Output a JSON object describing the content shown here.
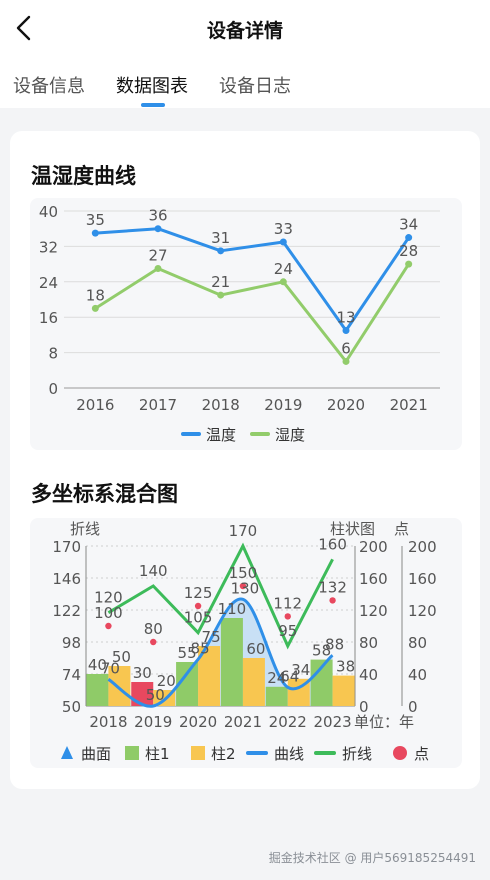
{
  "nav": {
    "title": "设备详情"
  },
  "tabs": [
    {
      "label": "设备信息",
      "active": false
    },
    {
      "label": "数据图表",
      "active": true
    },
    {
      "label": "设备日志",
      "active": false
    }
  ],
  "section1": {
    "title": "温湿度曲线"
  },
  "section2": {
    "title": "多坐标系混合图"
  },
  "footer": "掘金技术社区 @ 用户569185254491",
  "colors": {
    "blue": "#2f8fe8",
    "green_light": "#92cc6b",
    "green": "#3dbb5a",
    "yellow": "#f8c650",
    "red": "#e8485f",
    "bar_green": "#8fcb68"
  },
  "chart_data": [
    {
      "type": "line",
      "categories": [
        "2016",
        "2017",
        "2018",
        "2019",
        "2020",
        "2021"
      ],
      "series": [
        {
          "name": "温度",
          "values": [
            35,
            36,
            31,
            33,
            13,
            34
          ]
        },
        {
          "name": "湿度",
          "values": [
            18,
            27,
            21,
            24,
            6,
            28
          ]
        }
      ],
      "yticks": [
        0,
        8,
        16,
        24,
        32,
        40
      ],
      "ylim": [
        0,
        40
      ],
      "grid": true,
      "legend": "bottom-center"
    },
    {
      "type": "bar",
      "categories": [
        "2018",
        "2019",
        "2020",
        "2021",
        "2022",
        "2023"
      ],
      "xunit": "单位：年",
      "axes": [
        {
          "label": "折线",
          "ticks": [
            50,
            74,
            98,
            122,
            146,
            170
          ],
          "range": [
            50,
            170
          ],
          "position": "left"
        },
        {
          "label": "柱状图",
          "ticks": [
            0,
            40,
            80,
            120,
            160,
            200
          ],
          "range": [
            0,
            200
          ],
          "position": "right"
        },
        {
          "label": "点",
          "ticks": [
            0,
            40,
            80,
            120,
            160,
            200
          ],
          "range": [
            0,
            200
          ],
          "position": "right-outer"
        }
      ],
      "series": [
        {
          "name": "曲面",
          "kind": "area",
          "axis": 0,
          "values": [
            70,
            50,
            85,
            130,
            64,
            88
          ]
        },
        {
          "name": "柱1",
          "kind": "bar",
          "axis": 1,
          "values": [
            40,
            30,
            55,
            110,
            24,
            58
          ]
        },
        {
          "name": "柱2",
          "kind": "bar",
          "axis": 1,
          "values": [
            50,
            20,
            75,
            60,
            34,
            38
          ]
        },
        {
          "name": "曲线",
          "kind": "line",
          "axis": 0,
          "values": [
            70,
            50,
            85,
            130,
            64,
            88
          ]
        },
        {
          "name": "折线",
          "kind": "line",
          "axis": 0,
          "values": [
            120,
            140,
            105,
            170,
            95,
            160
          ]
        },
        {
          "name": "点",
          "kind": "scatter",
          "axis": 2,
          "values": [
            100,
            80,
            125,
            150,
            112,
            132
          ]
        }
      ],
      "highlight_bar": {
        "series": "柱1",
        "index": 1,
        "color": "#e8485f"
      },
      "legend": "bottom-center"
    }
  ]
}
